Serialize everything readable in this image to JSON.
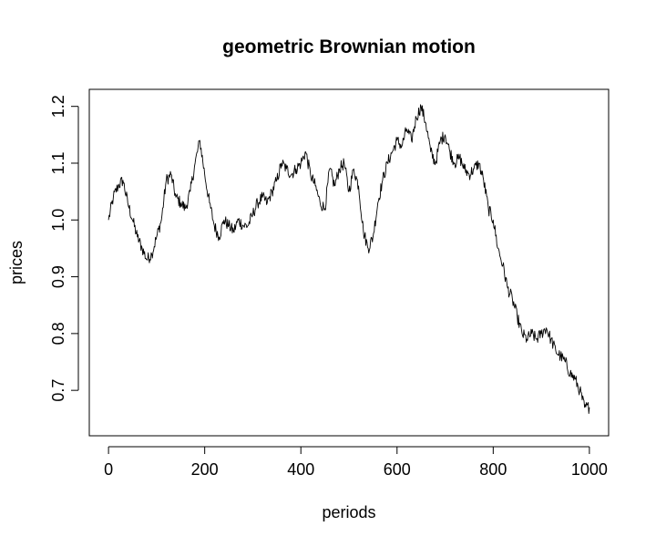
{
  "chart_data": {
    "type": "line",
    "title": "geometric Brownian motion",
    "xlabel": "periods",
    "ylabel": "prices",
    "xlim": [
      -40,
      1040
    ],
    "ylim": [
      0.62,
      1.23
    ],
    "xticks": [
      0,
      200,
      400,
      600,
      800,
      1000
    ],
    "yticks": [
      0.7,
      0.8,
      0.9,
      1.0,
      1.1,
      1.2
    ],
    "xtick_labels": [
      "0",
      "200",
      "400",
      "600",
      "800",
      "1000"
    ],
    "ytick_labels": [
      "0.7",
      "0.8",
      "0.9",
      "1.0",
      "1.1",
      "1.2"
    ],
    "grid": false,
    "series": [
      {
        "x": [
          0,
          10,
          20,
          30,
          40,
          50,
          60,
          70,
          80,
          90,
          100,
          110,
          120,
          130,
          140,
          150,
          160,
          170,
          180,
          190,
          200,
          210,
          220,
          230,
          240,
          250,
          260,
          270,
          280,
          290,
          300,
          310,
          320,
          330,
          340,
          350,
          360,
          370,
          380,
          390,
          400,
          410,
          420,
          430,
          440,
          450,
          460,
          470,
          480,
          490,
          500,
          510,
          520,
          530,
          540,
          550,
          560,
          570,
          580,
          590,
          600,
          610,
          620,
          630,
          640,
          650,
          660,
          670,
          680,
          690,
          700,
          710,
          720,
          730,
          740,
          750,
          760,
          770,
          780,
          790,
          800,
          810,
          820,
          830,
          840,
          850,
          860,
          870,
          880,
          890,
          900,
          910,
          920,
          930,
          940,
          950,
          960,
          970,
          980,
          990,
          1000
        ],
        "values": [
          1.0,
          1.04,
          1.06,
          1.07,
          1.03,
          1.0,
          0.97,
          0.95,
          0.93,
          0.94,
          0.97,
          1.0,
          1.07,
          1.08,
          1.04,
          1.03,
          1.02,
          1.05,
          1.1,
          1.14,
          1.08,
          1.03,
          0.99,
          0.97,
          1.0,
          0.99,
          0.98,
          1.0,
          0.99,
          0.99,
          1.01,
          1.03,
          1.04,
          1.03,
          1.05,
          1.07,
          1.1,
          1.09,
          1.08,
          1.09,
          1.1,
          1.12,
          1.08,
          1.06,
          1.03,
          1.02,
          1.09,
          1.06,
          1.09,
          1.1,
          1.05,
          1.09,
          1.06,
          0.98,
          0.95,
          0.97,
          1.03,
          1.07,
          1.1,
          1.12,
          1.14,
          1.13,
          1.16,
          1.14,
          1.18,
          1.2,
          1.17,
          1.12,
          1.1,
          1.14,
          1.15,
          1.12,
          1.1,
          1.11,
          1.09,
          1.08,
          1.09,
          1.1,
          1.07,
          1.02,
          1.0,
          0.95,
          0.92,
          0.88,
          0.86,
          0.83,
          0.8,
          0.79,
          0.8,
          0.79,
          0.8,
          0.81,
          0.79,
          0.77,
          0.76,
          0.75,
          0.73,
          0.72,
          0.7,
          0.67,
          0.67
        ]
      }
    ]
  }
}
